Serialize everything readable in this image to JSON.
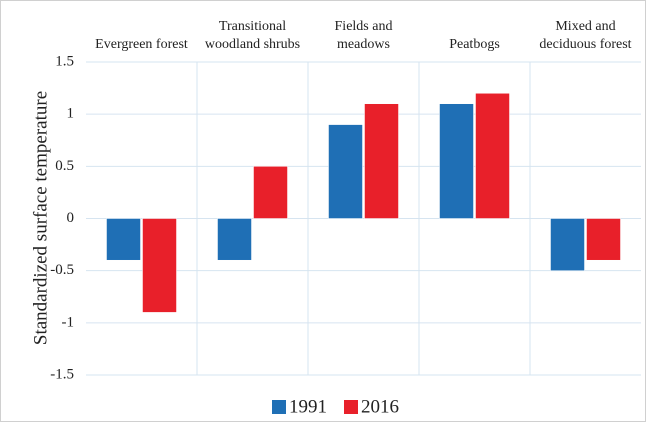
{
  "chart_data": {
    "type": "bar",
    "y_label": "Standardized surface temperature",
    "categories": [
      "Evergreen forest",
      "Transitional woodland shrubs",
      "Fields and meadows",
      "Peatbogs",
      "Mixed and deciduous forest"
    ],
    "series": [
      {
        "name": "1991",
        "color": "#1f6fb5",
        "values": [
          -0.4,
          -0.4,
          0.9,
          1.1,
          -0.5
        ]
      },
      {
        "name": "2016",
        "color": "#e8202a",
        "values": [
          -0.9,
          0.5,
          1.1,
          1.2,
          -0.4
        ]
      }
    ],
    "ylim": [
      -1.5,
      1.5
    ],
    "yticks": [
      1.5,
      1,
      0.5,
      0,
      -0.5,
      -1,
      -1.5
    ],
    "grid": true
  }
}
